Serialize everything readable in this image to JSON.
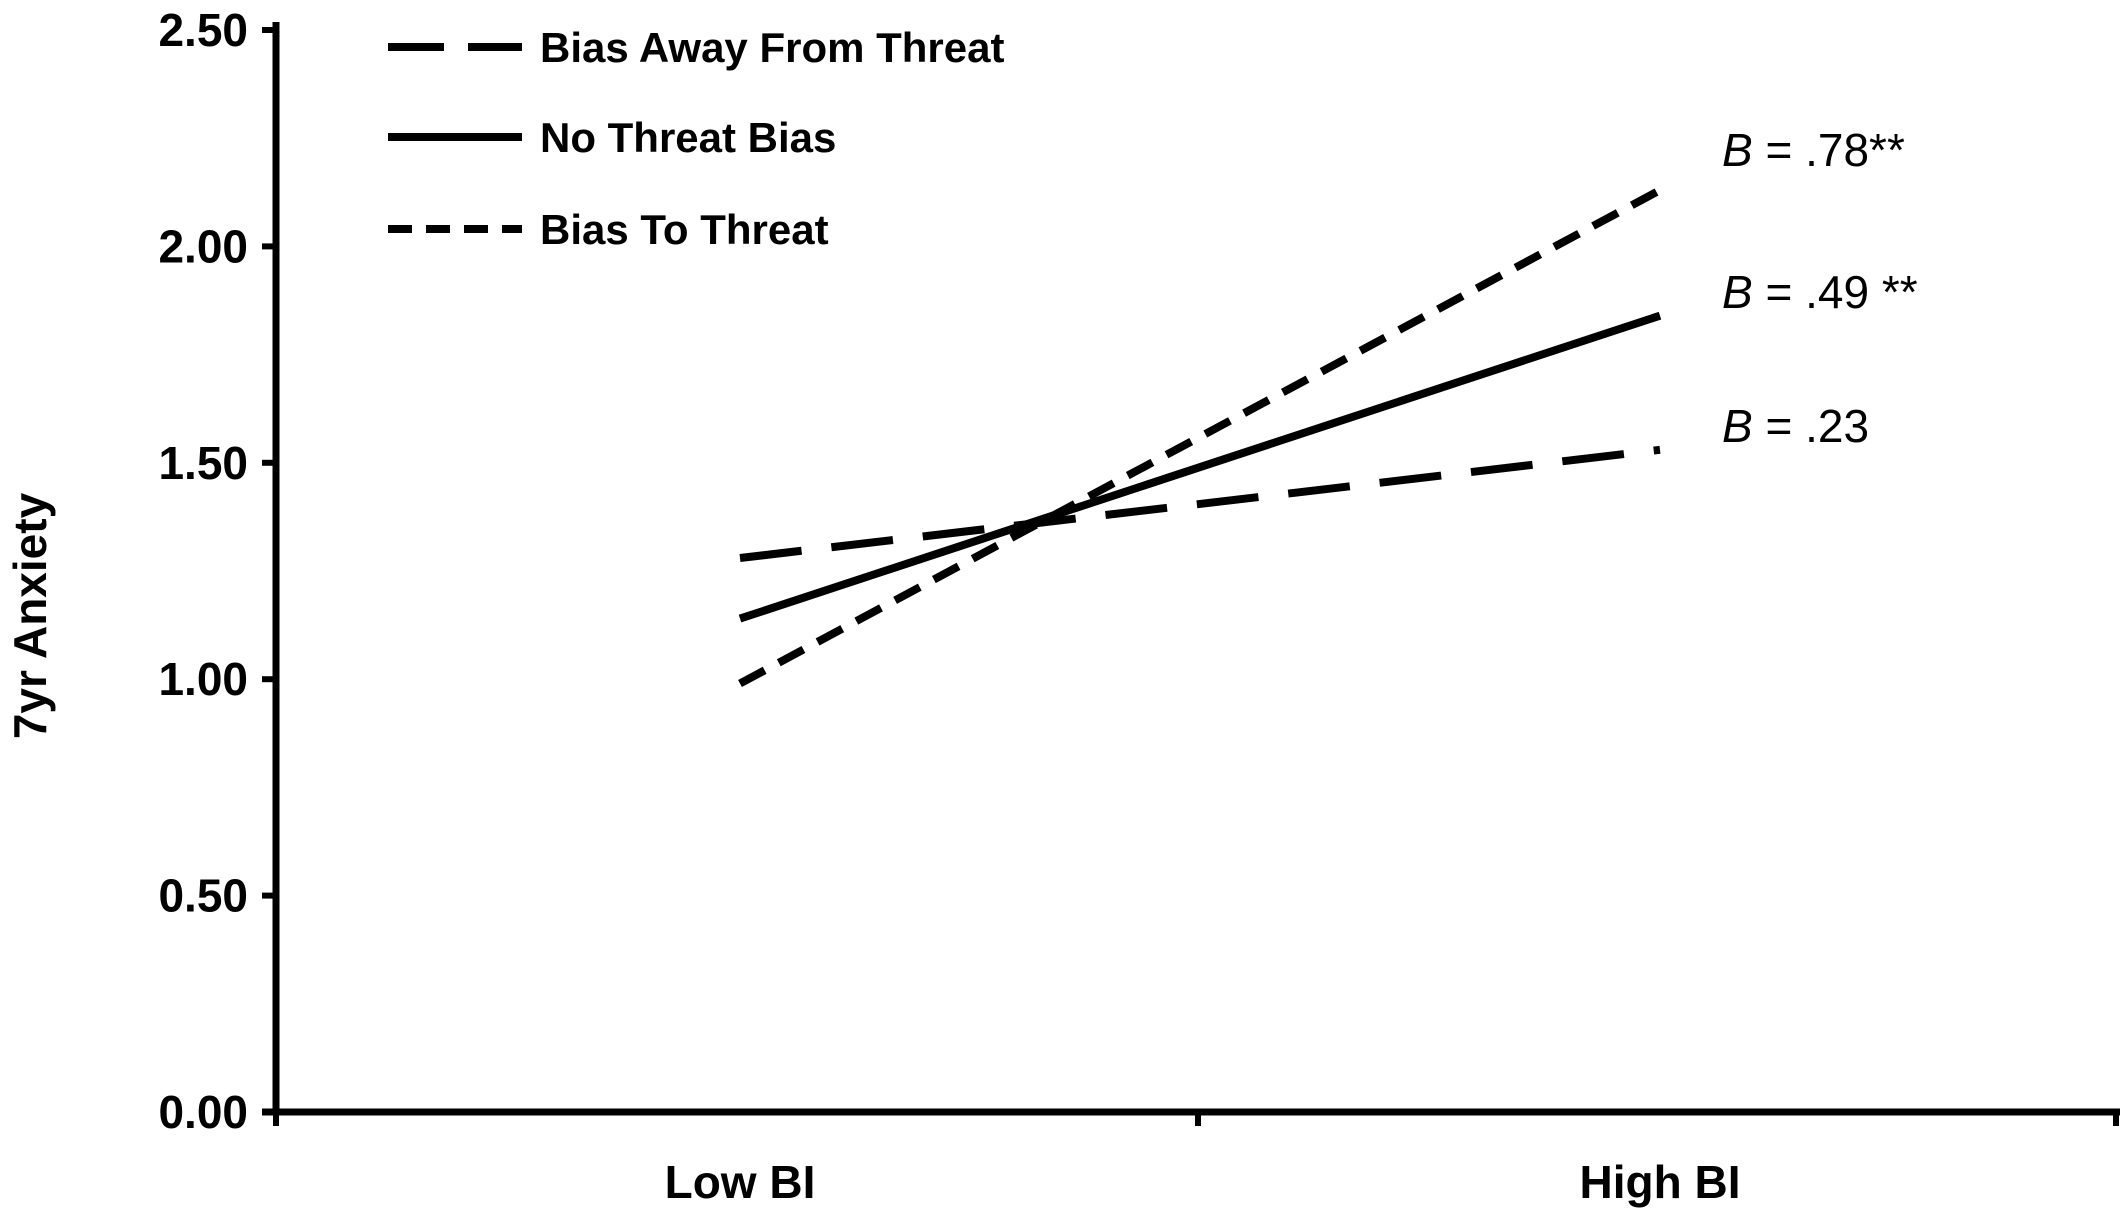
{
  "chart_data": {
    "type": "line",
    "ylabel": "7yr Anxiety",
    "xlabel": "",
    "categories": [
      "Low BI",
      "High BI"
    ],
    "ylim": [
      0,
      2.5
    ],
    "yticks": [
      "0.00",
      "0.50",
      "1.00",
      "1.50",
      "2.00",
      "2.50"
    ],
    "legend_position": "top-left",
    "series": [
      {
        "name": "Bias Away From Threat",
        "style": "long-dash",
        "values": [
          1.28,
          1.53
        ],
        "annotation_b": "B",
        "annotation_rest": " = .23"
      },
      {
        "name": "No Threat Bias",
        "style": "solid",
        "values": [
          1.14,
          1.84
        ],
        "annotation_b": "B",
        "annotation_rest": " = .49 **"
      },
      {
        "name": "Bias To Threat",
        "style": "short-dash",
        "values": [
          0.99,
          2.13
        ],
        "annotation_b": "B",
        "annotation_rest": " = .78**"
      }
    ],
    "line_color": "#000000"
  }
}
